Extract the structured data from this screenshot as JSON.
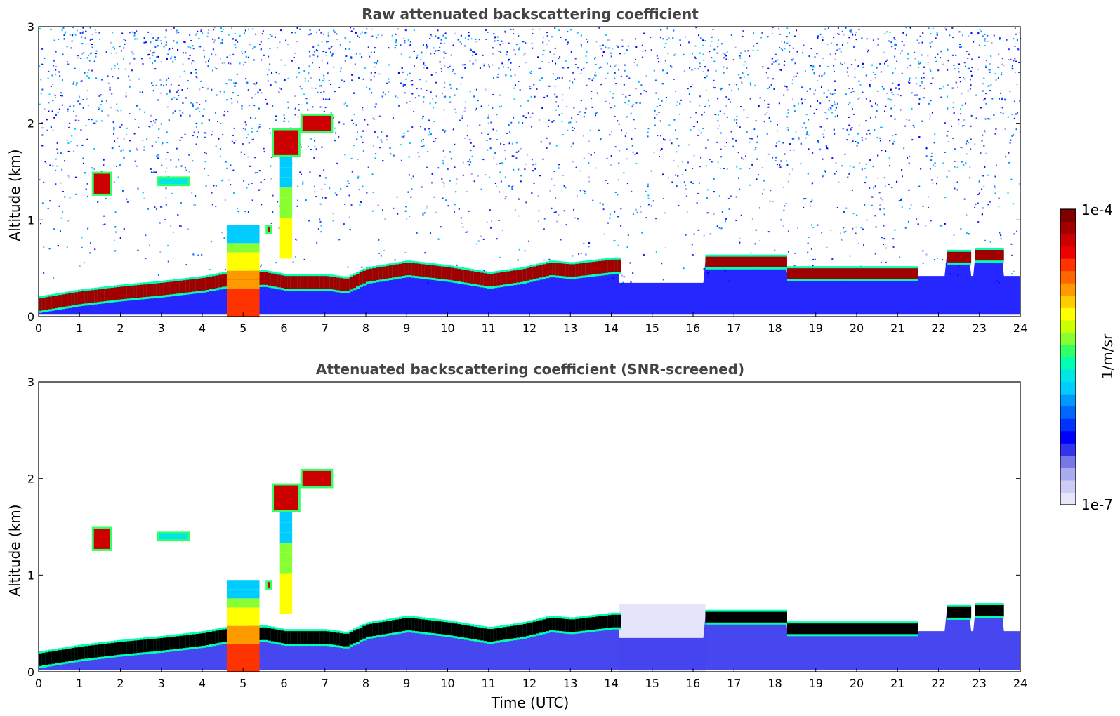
{
  "chart_data": [
    {
      "type": "heatmap",
      "title": "Raw attenuated backscattering coefficient",
      "xlabel": "",
      "ylabel": "Altitude (km)",
      "xlim": [
        0,
        24
      ],
      "ylim": [
        0,
        3
      ],
      "x_ticks": [
        "0",
        "1",
        "2",
        "3",
        "4",
        "5",
        "6",
        "7",
        "8",
        "9",
        "10",
        "11",
        "12",
        "13",
        "14",
        "15",
        "16",
        "17",
        "18",
        "19",
        "20",
        "21",
        "22",
        "23",
        "24"
      ],
      "y_ticks": [
        "0",
        "1",
        "2",
        "3"
      ],
      "background": "noise",
      "boundary_layer_top_km": [
        [
          0,
          0.15
        ],
        [
          1,
          0.22
        ],
        [
          2,
          0.27
        ],
        [
          3,
          0.31
        ],
        [
          4,
          0.36
        ],
        [
          4.5,
          0.4
        ],
        [
          5.5,
          0.42
        ],
        [
          6,
          0.38
        ],
        [
          7,
          0.38
        ],
        [
          7.5,
          0.35
        ],
        [
          8,
          0.45
        ],
        [
          9,
          0.52
        ],
        [
          10,
          0.47
        ],
        [
          11,
          0.4
        ],
        [
          11.8,
          0.45
        ],
        [
          12.5,
          0.52
        ],
        [
          13,
          0.5
        ],
        [
          14,
          0.55
        ],
        [
          14.2,
          0.55
        ]
      ],
      "upper_layer_segments": [
        {
          "t": [
            16.3,
            18.3
          ],
          "alt_km": 0.57
        },
        {
          "t": [
            18.3,
            21.5
          ],
          "alt_km": 0.45
        },
        {
          "t": [
            22.2,
            22.8
          ],
          "alt_km": 0.62
        },
        {
          "t": [
            22.9,
            23.6
          ],
          "alt_km": 0.64
        }
      ],
      "clouds": [
        {
          "t": [
            1.3,
            1.8
          ],
          "alt_km": [
            1.25,
            1.5
          ],
          "intensity": "high"
        },
        {
          "t": [
            2.9,
            3.7
          ],
          "alt_km": [
            1.35,
            1.45
          ],
          "intensity": "medium"
        },
        {
          "t": [
            5.7,
            6.4
          ],
          "alt_km": [
            1.65,
            1.95
          ],
          "intensity": "high"
        },
        {
          "t": [
            6.4,
            7.2
          ],
          "alt_km": [
            1.9,
            2.1
          ],
          "intensity": "high"
        },
        {
          "t": [
            5.55,
            5.7
          ],
          "alt_km": [
            0.85,
            0.95
          ],
          "intensity": "high"
        }
      ],
      "plumes": [
        {
          "t": [
            4.6,
            5.4
          ],
          "alt_km": [
            0,
            0.95
          ],
          "intensity": "very-high"
        },
        {
          "t": [
            5.9,
            6.2
          ],
          "alt_km": [
            0.6,
            1.65
          ],
          "intensity": "medium"
        }
      ]
    },
    {
      "type": "heatmap",
      "title": "Attenuated backscattering coefficient (SNR-screened)",
      "xlabel": "Time (UTC)",
      "ylabel": "Altitude (km)",
      "xlim": [
        0,
        24
      ],
      "ylim": [
        0,
        3
      ],
      "x_ticks": [
        "0",
        "1",
        "2",
        "3",
        "4",
        "5",
        "6",
        "7",
        "8",
        "9",
        "10",
        "11",
        "12",
        "13",
        "14",
        "15",
        "16",
        "17",
        "18",
        "19",
        "20",
        "21",
        "22",
        "23",
        "24"
      ],
      "y_ticks": [
        "0",
        "1",
        "2",
        "3"
      ],
      "background": "screened",
      "boundary_layer_top_km": [
        [
          0,
          0.15
        ],
        [
          1,
          0.22
        ],
        [
          2,
          0.27
        ],
        [
          3,
          0.31
        ],
        [
          4,
          0.36
        ],
        [
          4.5,
          0.4
        ],
        [
          5.5,
          0.42
        ],
        [
          6,
          0.38
        ],
        [
          7,
          0.38
        ],
        [
          7.5,
          0.35
        ],
        [
          8,
          0.45
        ],
        [
          9,
          0.52
        ],
        [
          10,
          0.47
        ],
        [
          11,
          0.4
        ],
        [
          11.8,
          0.45
        ],
        [
          12.5,
          0.52
        ],
        [
          13,
          0.5
        ],
        [
          14,
          0.55
        ],
        [
          14.2,
          0.55
        ]
      ],
      "upper_layer_segments": [
        {
          "t": [
            16.3,
            18.3
          ],
          "alt_km": 0.57
        },
        {
          "t": [
            18.3,
            21.5
          ],
          "alt_km": 0.45
        },
        {
          "t": [
            22.2,
            22.8
          ],
          "alt_km": 0.62
        },
        {
          "t": [
            22.9,
            23.6
          ],
          "alt_km": 0.64
        }
      ],
      "clouds": [
        {
          "t": [
            1.3,
            1.8
          ],
          "alt_km": [
            1.25,
            1.5
          ],
          "intensity": "high"
        },
        {
          "t": [
            2.9,
            3.7
          ],
          "alt_km": [
            1.35,
            1.45
          ],
          "intensity": "medium"
        },
        {
          "t": [
            5.7,
            6.4
          ],
          "alt_km": [
            1.65,
            1.95
          ],
          "intensity": "high"
        },
        {
          "t": [
            6.4,
            7.2
          ],
          "alt_km": [
            1.9,
            2.1
          ],
          "intensity": "high"
        },
        {
          "t": [
            5.55,
            5.7
          ],
          "alt_km": [
            0.85,
            0.95
          ],
          "intensity": "high"
        }
      ],
      "plumes": [
        {
          "t": [
            4.6,
            5.4
          ],
          "alt_km": [
            0,
            0.95
          ],
          "intensity": "very-high"
        },
        {
          "t": [
            5.9,
            6.2
          ],
          "alt_km": [
            0.6,
            1.65
          ],
          "intensity": "medium"
        }
      ]
    }
  ],
  "colorbar": {
    "label": "1/m/sr",
    "max_label": "1e-4",
    "min_label": "1e-7",
    "colors": [
      "#e6e6fa",
      "#ccccf5",
      "#aaaaee",
      "#7777e8",
      "#3333ee",
      "#0000ff",
      "#0033ff",
      "#0066ff",
      "#0099ff",
      "#00ccff",
      "#00e5e5",
      "#00ffb0",
      "#33ff66",
      "#88ff33",
      "#ccff00",
      "#ffff00",
      "#ffcc00",
      "#ff9900",
      "#ff6600",
      "#ff3300",
      "#ee0000",
      "#cc0000",
      "#a00000",
      "#800000"
    ]
  }
}
